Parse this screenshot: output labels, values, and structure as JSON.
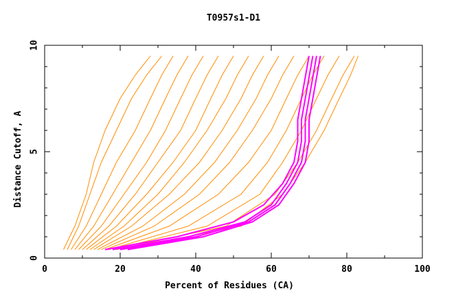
{
  "chart_data": {
    "type": "line",
    "title": "T0957s1-D1",
    "xlabel": "Percent of Residues (CA)",
    "ylabel": "Distance Cutoff, A",
    "xlim": [
      0,
      100
    ],
    "ylim": [
      0,
      10
    ],
    "x_ticks": [
      "0",
      "20",
      "40",
      "60",
      "80",
      "100"
    ],
    "y_ticks": [
      "0",
      "5",
      "10"
    ],
    "grid": false,
    "legend": "none",
    "colors": {
      "orange": "#ff8c00",
      "magenta": "#ff00ff",
      "axes": "#000000"
    },
    "series": [
      {
        "color": "orange",
        "points": [
          [
            5,
            0.4
          ],
          [
            8,
            1.5
          ],
          [
            11,
            3
          ],
          [
            13,
            4.5
          ],
          [
            16,
            6
          ],
          [
            20,
            7.5
          ],
          [
            24,
            8.6
          ],
          [
            28,
            9.5
          ]
        ]
      },
      {
        "color": "orange",
        "points": [
          [
            6,
            0.4
          ],
          [
            9,
            1.5
          ],
          [
            12,
            3
          ],
          [
            15,
            4.5
          ],
          [
            19,
            6
          ],
          [
            23,
            7.5
          ],
          [
            27,
            8.6
          ],
          [
            31,
            9.5
          ]
        ]
      },
      {
        "color": "orange",
        "points": [
          [
            7,
            0.4
          ],
          [
            11,
            1.5
          ],
          [
            15,
            3
          ],
          [
            19,
            4.5
          ],
          [
            24,
            6
          ],
          [
            28,
            7.5
          ],
          [
            31,
            8.6
          ],
          [
            34,
            9.5
          ]
        ]
      },
      {
        "color": "orange",
        "points": [
          [
            8,
            0.4
          ],
          [
            13,
            1.5
          ],
          [
            18,
            3
          ],
          [
            23,
            4.5
          ],
          [
            28,
            6
          ],
          [
            32,
            7.5
          ],
          [
            35,
            8.6
          ],
          [
            38,
            9.5
          ]
        ]
      },
      {
        "color": "orange",
        "points": [
          [
            9,
            0.4
          ],
          [
            15,
            1.5
          ],
          [
            21,
            3
          ],
          [
            27,
            4.5
          ],
          [
            32,
            6
          ],
          [
            36,
            7.5
          ],
          [
            39,
            8.6
          ],
          [
            42,
            9.5
          ]
        ]
      },
      {
        "color": "orange",
        "points": [
          [
            10,
            0.4
          ],
          [
            17,
            1.5
          ],
          [
            24,
            3
          ],
          [
            30,
            4.5
          ],
          [
            36,
            6
          ],
          [
            40,
            7.5
          ],
          [
            43,
            8.6
          ],
          [
            46,
            9.5
          ]
        ]
      },
      {
        "color": "orange",
        "points": [
          [
            11,
            0.4
          ],
          [
            19,
            1.5
          ],
          [
            27,
            3
          ],
          [
            34,
            4.5
          ],
          [
            40,
            6
          ],
          [
            44,
            7.5
          ],
          [
            47,
            8.6
          ],
          [
            50,
            9.5
          ]
        ]
      },
      {
        "color": "orange",
        "points": [
          [
            12,
            0.4
          ],
          [
            21,
            1.5
          ],
          [
            30,
            3
          ],
          [
            37,
            4.5
          ],
          [
            43,
            6
          ],
          [
            48,
            7.5
          ],
          [
            51,
            8.6
          ],
          [
            54,
            9.5
          ]
        ]
      },
      {
        "color": "orange",
        "points": [
          [
            13,
            0.4
          ],
          [
            23,
            1.5
          ],
          [
            33,
            3
          ],
          [
            41,
            4.5
          ],
          [
            47,
            6
          ],
          [
            52,
            7.5
          ],
          [
            55,
            8.6
          ],
          [
            58,
            9.5
          ]
        ]
      },
      {
        "color": "orange",
        "points": [
          [
            14,
            0.4
          ],
          [
            26,
            1.5
          ],
          [
            37,
            3
          ],
          [
            45,
            4.5
          ],
          [
            51,
            6
          ],
          [
            56,
            7.5
          ],
          [
            59,
            8.6
          ],
          [
            62,
            9.5
          ]
        ]
      },
      {
        "color": "orange",
        "points": [
          [
            15,
            0.4
          ],
          [
            29,
            1.5
          ],
          [
            41,
            3
          ],
          [
            49,
            4.5
          ],
          [
            55,
            6
          ],
          [
            60,
            7.5
          ],
          [
            63,
            8.6
          ],
          [
            66,
            9.5
          ]
        ]
      },
      {
        "color": "orange",
        "points": [
          [
            16,
            0.4
          ],
          [
            33,
            1.5
          ],
          [
            46,
            3
          ],
          [
            54,
            4.5
          ],
          [
            60,
            6
          ],
          [
            64,
            7.5
          ],
          [
            67,
            8.6
          ],
          [
            70,
            9.5
          ]
        ]
      },
      {
        "color": "orange",
        "points": [
          [
            17,
            0.4
          ],
          [
            38,
            1.5
          ],
          [
            52,
            3
          ],
          [
            59,
            4.5
          ],
          [
            64,
            6
          ],
          [
            68,
            7.5
          ],
          [
            71,
            8.6
          ],
          [
            74,
            9.5
          ]
        ]
      },
      {
        "color": "orange",
        "points": [
          [
            18,
            0.4
          ],
          [
            43,
            1.5
          ],
          [
            57,
            3
          ],
          [
            63,
            4.5
          ],
          [
            68,
            6
          ],
          [
            72,
            7.5
          ],
          [
            75,
            8.6
          ],
          [
            78,
            9.5
          ]
        ]
      },
      {
        "color": "orange",
        "points": [
          [
            19,
            0.4
          ],
          [
            48,
            1.5
          ],
          [
            61,
            3
          ],
          [
            67,
            4.5
          ],
          [
            72,
            6
          ],
          [
            76,
            7.5
          ],
          [
            79,
            8.6
          ],
          [
            82,
            9.5
          ]
        ]
      },
      {
        "color": "orange",
        "points": [
          [
            20,
            0.4
          ],
          [
            52,
            1.5
          ],
          [
            63,
            3
          ],
          [
            69,
            4.5
          ],
          [
            74,
            6
          ],
          [
            78,
            7.5
          ],
          [
            81,
            8.6
          ],
          [
            83,
            9.5
          ]
        ]
      },
      {
        "color": "magenta",
        "points": [
          [
            16,
            0.4
          ],
          [
            35,
            1.0
          ],
          [
            50,
            1.7
          ],
          [
            58,
            2.5
          ],
          [
            63,
            3.5
          ],
          [
            66,
            4.5
          ],
          [
            67,
            5.5
          ],
          [
            67,
            6.5
          ],
          [
            68,
            7.5
          ],
          [
            69,
            8.5
          ],
          [
            70,
            9.5
          ]
        ]
      },
      {
        "color": "magenta",
        "points": [
          [
            18,
            0.4
          ],
          [
            38,
            1.0
          ],
          [
            53,
            1.7
          ],
          [
            60,
            2.5
          ],
          [
            64,
            3.5
          ],
          [
            67,
            4.5
          ],
          [
            68,
            5.5
          ],
          [
            68,
            6.5
          ],
          [
            69,
            7.5
          ],
          [
            70,
            8.5
          ],
          [
            71,
            9.5
          ]
        ]
      },
      {
        "color": "magenta",
        "points": [
          [
            20,
            0.4
          ],
          [
            40,
            1.0
          ],
          [
            54,
            1.7
          ],
          [
            61,
            2.5
          ],
          [
            65,
            3.5
          ],
          [
            68,
            4.5
          ],
          [
            69,
            5.5
          ],
          [
            69,
            6.5
          ],
          [
            70,
            7.5
          ],
          [
            71,
            8.5
          ],
          [
            72,
            9.5
          ]
        ]
      },
      {
        "color": "magenta",
        "points": [
          [
            22,
            0.4
          ],
          [
            42,
            1.0
          ],
          [
            55,
            1.7
          ],
          [
            62,
            2.5
          ],
          [
            66,
            3.5
          ],
          [
            69,
            4.5
          ],
          [
            70,
            5.5
          ],
          [
            70,
            6.5
          ],
          [
            71,
            7.5
          ],
          [
            72,
            8.5
          ],
          [
            73,
            9.5
          ]
        ]
      }
    ]
  }
}
